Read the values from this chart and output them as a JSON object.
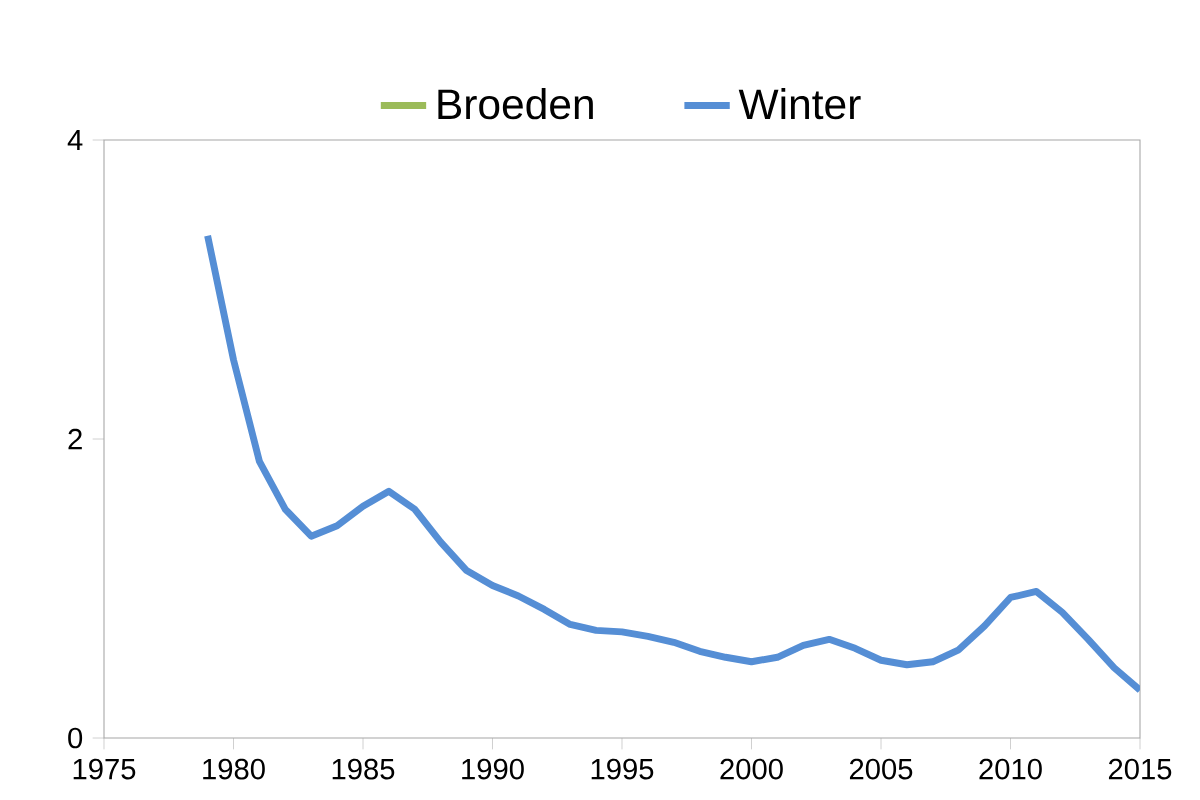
{
  "chart_data": {
    "type": "line",
    "xlim": [
      1975,
      2015
    ],
    "xticks": [
      1975,
      1980,
      1985,
      1990,
      1995,
      2000,
      2005,
      2010,
      2015
    ],
    "ylim": [
      0,
      4
    ],
    "yticks": [
      0,
      2,
      4
    ],
    "legend": "top",
    "grid": false,
    "marker": "none",
    "line_style": "solid",
    "x": [
      1979,
      1980,
      1981,
      1982,
      1983,
      1984,
      1985,
      1986,
      1987,
      1988,
      1989,
      1990,
      1991,
      1992,
      1993,
      1994,
      1995,
      1996,
      1997,
      1998,
      1999,
      2000,
      2001,
      2002,
      2003,
      2004,
      2005,
      2006,
      2007,
      2008,
      2009,
      2010,
      2011,
      2012,
      2013,
      2014,
      2015
    ],
    "series": [
      {
        "name": "Broeden",
        "color": "#9bbb59",
        "values": [
          null,
          null,
          null,
          null,
          null,
          null,
          null,
          null,
          null,
          null,
          null,
          null,
          null,
          null,
          null,
          null,
          null,
          null,
          null,
          null,
          null,
          null,
          null,
          null,
          null,
          null,
          null,
          null,
          null,
          null,
          null,
          null,
          null,
          null,
          null,
          null,
          null
        ]
      },
      {
        "name": "Winter",
        "color": "#558ed5",
        "values": [
          3.36,
          2.53,
          1.85,
          1.53,
          1.35,
          1.42,
          1.55,
          1.65,
          1.53,
          1.31,
          1.12,
          1.02,
          0.95,
          0.86,
          0.76,
          0.72,
          0.71,
          0.68,
          0.64,
          0.58,
          0.54,
          0.51,
          0.54,
          0.62,
          0.66,
          0.6,
          0.52,
          0.49,
          0.51,
          0.59,
          0.75,
          0.94,
          0.98,
          0.84,
          0.66,
          0.47,
          0.32
        ]
      }
    ]
  }
}
